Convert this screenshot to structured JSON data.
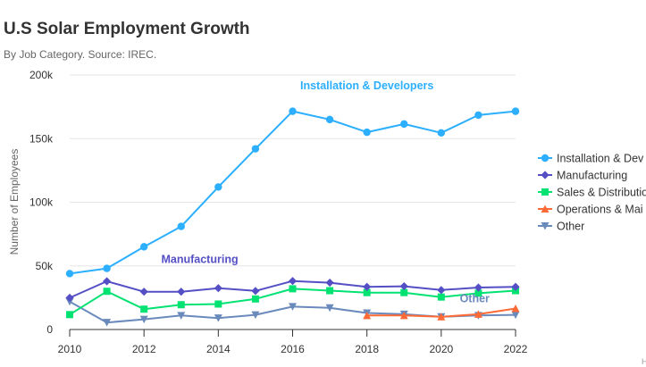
{
  "chart_data": {
    "type": "line",
    "title": "U.S Solar Employment Growth",
    "subtitle": "By Job Category. Source: IREC.",
    "ylabel": "Number of Employees",
    "xlabel": "",
    "x_ticks": [
      2010,
      2012,
      2014,
      2016,
      2018,
      2020,
      2022
    ],
    "y_ticks": [
      0,
      50000,
      100000,
      150000,
      200000
    ],
    "y_tick_labels": [
      "0",
      "50k",
      "100k",
      "150k",
      "200k"
    ],
    "xlim": [
      2010,
      2022
    ],
    "ylim": [
      0,
      200000
    ],
    "grid": "horizontal",
    "legend_position": "right",
    "credit": "H",
    "series": [
      {
        "name": "Installation & Developers",
        "legend_label": "Installation & Dev",
        "color": "#2caffe",
        "marker": "circle",
        "x": [
          2010,
          2011,
          2012,
          2013,
          2014,
          2015,
          2016,
          2017,
          2018,
          2019,
          2020,
          2021,
          2022
        ],
        "values": [
          43900,
          48000,
          65000,
          81000,
          112000,
          142000,
          171500,
          165000,
          155000,
          161500,
          154500,
          168500,
          171500
        ]
      },
      {
        "name": "Manufacturing",
        "legend_label": "Manufacturing",
        "color": "#544fc5",
        "marker": "diamond",
        "x": [
          2010,
          2011,
          2012,
          2013,
          2014,
          2015,
          2016,
          2017,
          2018,
          2019,
          2020,
          2021,
          2022
        ],
        "values": [
          24900,
          37900,
          29700,
          29700,
          32500,
          30300,
          38100,
          36800,
          33500,
          34000,
          31000,
          33000,
          33500
        ]
      },
      {
        "name": "Sales & Distribution",
        "legend_label": "Sales & Distributio",
        "color": "#00e272",
        "marker": "square",
        "x": [
          2010,
          2011,
          2012,
          2013,
          2014,
          2015,
          2016,
          2017,
          2018,
          2019,
          2020,
          2021,
          2022
        ],
        "values": [
          11700,
          30000,
          16000,
          19500,
          20000,
          24000,
          32000,
          30500,
          29000,
          29000,
          25500,
          28500,
          30500
        ]
      },
      {
        "name": "Operations & Maintenance",
        "legend_label": "Operations & Mai",
        "color": "#fe6a35",
        "marker": "triangle",
        "x": [
          2018,
          2019,
          2020,
          2021,
          2022
        ],
        "values": [
          11000,
          11000,
          10000,
          12000,
          16500
        ]
      },
      {
        "name": "Other",
        "legend_label": "Other",
        "color": "#6b8abc",
        "marker": "triangle-down",
        "x": [
          2010,
          2011,
          2012,
          2013,
          2014,
          2015,
          2016,
          2017,
          2018,
          2019,
          2020,
          2021,
          2022
        ],
        "values": [
          21900,
          5500,
          8000,
          11000,
          9000,
          11500,
          18000,
          17000,
          13000,
          12000,
          10000,
          11000,
          11500
        ]
      }
    ],
    "annotations": [
      {
        "text": "Installation & Developers",
        "series": 0,
        "color": "#2caffe"
      },
      {
        "text": "Manufacturing",
        "series": 1,
        "color": "#544fc5"
      },
      {
        "text": "Other",
        "series": 4,
        "color": "#6b8abc"
      }
    ]
  }
}
